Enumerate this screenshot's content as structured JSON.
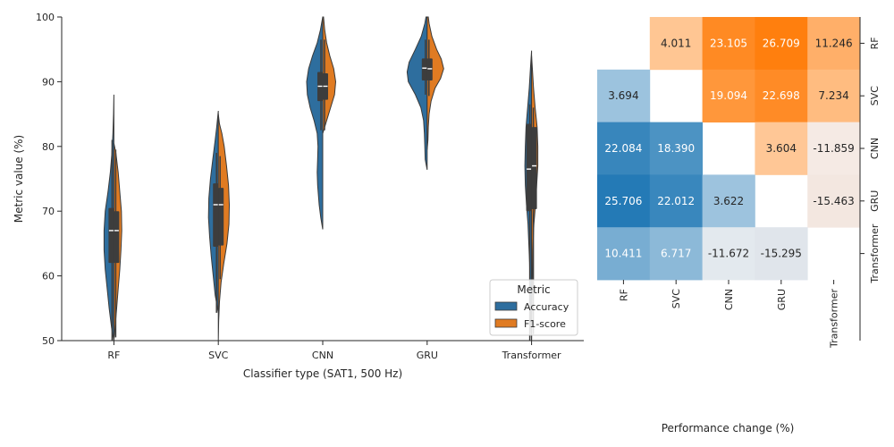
{
  "chart_data": [
    {
      "type": "violin",
      "xlabel": "Classifier type (SAT1, 500 Hz)",
      "ylabel": "Metric value (%)",
      "ylim": [
        50,
        100
      ],
      "yticks": [
        50,
        60,
        70,
        80,
        90,
        100
      ],
      "categories": [
        "RF",
        "SVC",
        "CNN",
        "GRU",
        "Transformer"
      ],
      "legend": {
        "title": "Metric",
        "placement": "lower-right",
        "entries": [
          {
            "name": "Accuracy",
            "color": "#2e6e9e"
          },
          {
            "name": "F1-score",
            "color": "#e07b22"
          }
        ]
      },
      "series": [
        {
          "name": "Accuracy",
          "color": "#2e6e9e",
          "distributions": [
            {
              "min": 49.9,
              "q1": 62,
              "median": 67,
              "q3": 70.5,
              "max": 81,
              "profile": [
                [
                  50,
                  0.0
                ],
                [
                  52,
                  0.06
                ],
                [
                  55,
                  0.12
                ],
                [
                  58,
                  0.17
                ],
                [
                  61,
                  0.22
                ],
                [
                  64,
                  0.25
                ],
                [
                  67,
                  0.25
                ],
                [
                  70,
                  0.22
                ],
                [
                  73,
                  0.15
                ],
                [
                  76,
                  0.09
                ],
                [
                  79,
                  0.05
                ],
                [
                  82,
                  0.025
                ],
                [
                  85,
                  0.01
                ],
                [
                  88,
                  0.0
                ]
              ]
            },
            {
              "min": 54.3,
              "q1": 64.5,
              "median": 71,
              "q3": 74.3,
              "max": 79,
              "profile": [
                [
                  54.3,
                  0.0
                ],
                [
                  57,
                  0.08
                ],
                [
                  60,
                  0.13
                ],
                [
                  63,
                  0.18
                ],
                [
                  66,
                  0.22
                ],
                [
                  69,
                  0.25
                ],
                [
                  72,
                  0.24
                ],
                [
                  75,
                  0.2
                ],
                [
                  78,
                  0.14
                ],
                [
                  81,
                  0.08
                ],
                [
                  83,
                  0.04
                ],
                [
                  85.5,
                  0.0
                ]
              ]
            },
            {
              "min": 82.5,
              "q1": 87,
              "median": 89.3,
              "q3": 91.5,
              "max": 96.5,
              "profile": [
                [
                  67.2,
                  0.0
                ],
                [
                  69,
                  0.05
                ],
                [
                  71,
                  0.09
                ],
                [
                  74,
                  0.13
                ],
                [
                  76,
                  0.14
                ],
                [
                  78,
                  0.13
                ],
                [
                  80,
                  0.12
                ],
                [
                  82,
                  0.14
                ],
                [
                  84,
                  0.22
                ],
                [
                  86,
                  0.32
                ],
                [
                  88,
                  0.39
                ],
                [
                  90,
                  0.41
                ],
                [
                  92,
                  0.36
                ],
                [
                  94,
                  0.26
                ],
                [
                  96,
                  0.14
                ],
                [
                  98,
                  0.06
                ],
                [
                  100,
                  0.0
                ]
              ]
            },
            {
              "min": 88,
              "q1": 90.2,
              "median": 92.1,
              "q3": 93.6,
              "max": 96.5,
              "profile": [
                [
                  76.4,
                  0.0
                ],
                [
                  78,
                  0.05
                ],
                [
                  80,
                  0.06
                ],
                [
                  82,
                  0.07
                ],
                [
                  84,
                  0.09
                ],
                [
                  86,
                  0.16
                ],
                [
                  88,
                  0.3
                ],
                [
                  90,
                  0.48
                ],
                [
                  91.5,
                  0.51
                ],
                [
                  93,
                  0.46
                ],
                [
                  95,
                  0.3
                ],
                [
                  97,
                  0.15
                ],
                [
                  99,
                  0.06
                ],
                [
                  100,
                  0.03
                ]
              ]
            },
            {
              "min": 50,
              "q1": 70,
              "median": 76.5,
              "q3": 83.5,
              "max": 86.5,
              "profile": [
                [
                  50,
                  0.0
                ],
                [
                  53,
                  0.02
                ],
                [
                  56,
                  0.03
                ],
                [
                  59,
                  0.04
                ],
                [
                  62,
                  0.05
                ],
                [
                  65,
                  0.07
                ],
                [
                  68,
                  0.09
                ],
                [
                  71,
                  0.13
                ],
                [
                  74,
                  0.16
                ],
                [
                  77,
                  0.17
                ],
                [
                  80,
                  0.16
                ],
                [
                  83,
                  0.14
                ],
                [
                  86,
                  0.1
                ],
                [
                  89,
                  0.06
                ],
                [
                  92,
                  0.03
                ],
                [
                  94.8,
                  0.0
                ]
              ]
            }
          ]
        },
        {
          "name": "F1-score",
          "color": "#e07b22",
          "distributions": [
            {
              "min": 50.5,
              "q1": 62,
              "median": 67,
              "q3": 70,
              "max": 79.5,
              "profile": [
                [
                  50,
                  0.0
                ],
                [
                  52,
                  0.03
                ],
                [
                  55,
                  0.07
                ],
                [
                  58,
                  0.11
                ],
                [
                  61,
                  0.15
                ],
                [
                  64,
                  0.18
                ],
                [
                  67,
                  0.2
                ],
                [
                  70,
                  0.19
                ],
                [
                  73,
                  0.15
                ],
                [
                  76,
                  0.11
                ],
                [
                  79,
                  0.05
                ],
                [
                  80.5,
                  0.0
                ]
              ]
            },
            {
              "min": 59.5,
              "q1": 64.7,
              "median": 71,
              "q3": 73.6,
              "max": 78.5,
              "profile": [
                [
                  50,
                  0.0
                ],
                [
                  53,
                  0.01
                ],
                [
                  56,
                  0.03
                ],
                [
                  59,
                  0.07
                ],
                [
                  62,
                  0.14
                ],
                [
                  65,
                  0.22
                ],
                [
                  68,
                  0.27
                ],
                [
                  71,
                  0.28
                ],
                [
                  74,
                  0.26
                ],
                [
                  77,
                  0.21
                ],
                [
                  80,
                  0.15
                ],
                [
                  82,
                  0.09
                ],
                [
                  83.5,
                  0.03
                ],
                [
                  85,
                  0.0
                ]
              ]
            },
            {
              "min": 82.5,
              "q1": 87.2,
              "median": 89.3,
              "q3": 91.3,
              "max": 96.5,
              "profile": [
                [
                  82,
                  0.0
                ],
                [
                  84,
                  0.1
                ],
                [
                  86,
                  0.2
                ],
                [
                  88,
                  0.3
                ],
                [
                  90,
                  0.33
                ],
                [
                  92,
                  0.28
                ],
                [
                  94,
                  0.18
                ],
                [
                  96,
                  0.1
                ],
                [
                  98,
                  0.05
                ],
                [
                  100,
                  0.02
                ]
              ]
            },
            {
              "min": 87.8,
              "q1": 90.2,
              "median": 92,
              "q3": 93.6,
              "max": 96.5,
              "profile": [
                [
                  79.5,
                  0.0
                ],
                [
                  81,
                  0.02
                ],
                [
                  83,
                  0.03
                ],
                [
                  85,
                  0.05
                ],
                [
                  87,
                  0.1
                ],
                [
                  89,
                  0.2
                ],
                [
                  90.5,
                  0.34
                ],
                [
                  92,
                  0.42
                ],
                [
                  93.5,
                  0.36
                ],
                [
                  95,
                  0.24
                ],
                [
                  97,
                  0.12
                ],
                [
                  99,
                  0.05
                ],
                [
                  100,
                  0.03
                ]
              ]
            },
            {
              "min": 51,
              "q1": 70.3,
              "median": 77,
              "q3": 83,
              "max": 86,
              "profile": [
                [
                  50,
                  0.0
                ],
                [
                  55,
                  0.01
                ],
                [
                  60,
                  0.02
                ],
                [
                  64,
                  0.03
                ],
                [
                  68,
                  0.06
                ],
                [
                  71,
                  0.1
                ],
                [
                  74,
                  0.13
                ],
                [
                  77,
                  0.16
                ],
                [
                  80,
                  0.16
                ],
                [
                  83,
                  0.14
                ],
                [
                  86,
                  0.09
                ],
                [
                  89,
                  0.05
                ],
                [
                  92,
                  0.02
                ],
                [
                  94,
                  0.0
                ]
              ]
            }
          ]
        }
      ]
    },
    {
      "type": "heatmap",
      "xlabel": "Performance change (%)",
      "ylabel": "",
      "row_labels": [
        "RF",
        "SVC",
        "CNN",
        "GRU",
        "Transformer"
      ],
      "column_labels": [
        "RF",
        "SVC",
        "CNN",
        "GRU",
        "Transformer"
      ],
      "row_label_position": "right",
      "colors": {
        "positive_upper": "#ff7f0e",
        "positive_lower": "#1f77b4",
        "negative": "#c8cfd6",
        "neutral": "#ffffff",
        "dark_text": "#262626",
        "light_text": "#ffffff"
      },
      "values": [
        [
          null,
          4.011,
          23.105,
          26.709,
          11.246
        ],
        [
          3.694,
          null,
          19.094,
          22.698,
          7.234
        ],
        [
          22.084,
          18.39,
          null,
          3.604,
          -11.859
        ],
        [
          25.706,
          22.012,
          3.622,
          null,
          -15.463
        ],
        [
          10.411,
          6.717,
          -11.672,
          -15.295,
          null
        ]
      ],
      "labels": [
        [
          "",
          "4.011",
          "23.105",
          "26.709",
          "11.246"
        ],
        [
          "3.694",
          "",
          "19.094",
          "22.698",
          "7.234"
        ],
        [
          "22.084",
          "18.390",
          "",
          "3.604",
          "-11.859"
        ],
        [
          "25.706",
          "22.012",
          "3.622",
          "",
          "-15.463"
        ],
        [
          "10.411",
          "6.717",
          "-11.672",
          "-15.295",
          ""
        ]
      ]
    }
  ]
}
